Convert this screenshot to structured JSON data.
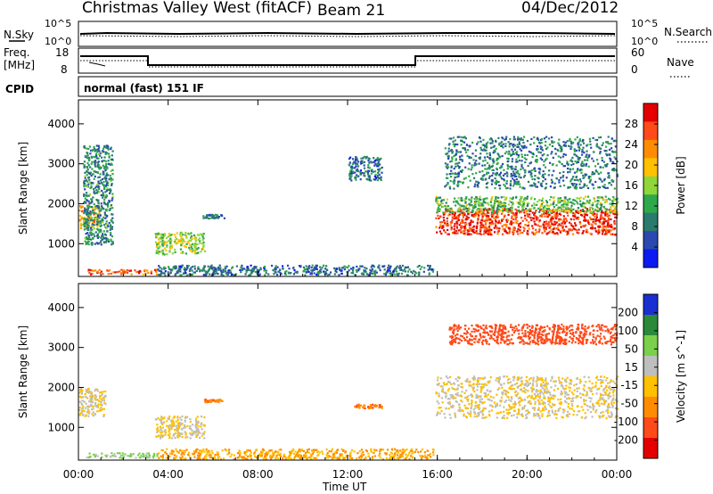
{
  "header": {
    "station": "Christmas Valley West (fitACF)",
    "beam": "Beam 21",
    "date": "04/Dec/2012"
  },
  "top_panels": {
    "nsky_label": "N.Sky",
    "nsky_ticks": [
      "10^5",
      "10^0"
    ],
    "nsearch_label": "N.Search",
    "nsearch_ticks": [
      "10^5",
      "10^0"
    ],
    "freq_label_1": "Freq.",
    "freq_label_2": "[MHz]",
    "freq_ticks": [
      "18",
      "8"
    ],
    "nave_label": "Nave",
    "nave_ticks": [
      "60",
      "0"
    ],
    "cpid_label": "CPID",
    "cpid_value": "normal (fast) 151 IF"
  },
  "chart_data": [
    {
      "type": "heatmap",
      "title": "",
      "ylabel": "Slant Range [km]",
      "xlabel": "",
      "x_ticks": [
        "00:00",
        "04:00",
        "08:00",
        "12:00",
        "16:00",
        "20:00",
        "00:00"
      ],
      "y_ticks": [
        1000,
        2000,
        3000,
        4000
      ],
      "ylim": [
        180,
        4600
      ],
      "xlim_hours": [
        0,
        24
      ],
      "colorbar": {
        "label": "Power [dB]",
        "ticks": [
          "28",
          "24",
          "20",
          "16",
          "12",
          "8",
          "4"
        ],
        "colors": [
          "#e40000",
          "#ff4a1a",
          "#ff8c00",
          "#ffc000",
          "#8fd63a",
          "#2ea84a",
          "#2a7a6e",
          "#2a48b0",
          "#0a1af0"
        ]
      },
      "regions": [
        {
          "t0": 0.0,
          "t1": 0.9,
          "r0": 1400,
          "r1": 2000,
          "v": 20
        },
        {
          "t0": 0.2,
          "t1": 1.5,
          "r0": 1000,
          "r1": 3500,
          "v": 8
        },
        {
          "t0": 3.4,
          "t1": 5.6,
          "r0": 750,
          "r1": 1300,
          "v": 14
        },
        {
          "t0": 5.5,
          "t1": 6.5,
          "r0": 1650,
          "r1": 1750,
          "v": 6
        },
        {
          "t0": 0.3,
          "t1": 3.5,
          "r0": 250,
          "r1": 380,
          "v": 24
        },
        {
          "t0": 3.5,
          "t1": 15.8,
          "r0": 230,
          "r1": 480,
          "v": 6
        },
        {
          "t0": 12.0,
          "t1": 13.5,
          "r0": 2600,
          "r1": 3200,
          "v": 6
        },
        {
          "t0": 15.9,
          "t1": 24.0,
          "r0": 1250,
          "r1": 1900,
          "v": 26
        },
        {
          "t0": 15.9,
          "t1": 24.0,
          "r0": 1800,
          "r1": 2200,
          "v": 12
        },
        {
          "t0": 16.3,
          "t1": 24.0,
          "r0": 2400,
          "r1": 3700,
          "v": 7
        }
      ]
    },
    {
      "type": "heatmap",
      "title": "",
      "ylabel": "Slant Range [km]",
      "xlabel": "Time UT",
      "x_ticks": [
        "00:00",
        "04:00",
        "08:00",
        "12:00",
        "16:00",
        "20:00",
        "00:00"
      ],
      "y_ticks": [
        1000,
        2000,
        3000,
        4000
      ],
      "ylim": [
        180,
        4600
      ],
      "xlim_hours": [
        0,
        24
      ],
      "colorbar": {
        "label": "Velocity [m s^-1]",
        "ticks": [
          "200",
          "100",
          "50",
          "15",
          "-15",
          "-50",
          "-100",
          "-200"
        ],
        "colors": [
          "#1a2fd0",
          "#2a8a3a",
          "#7ad04a",
          "#bebebe",
          "#ffc000",
          "#ff8c00",
          "#ff4a1a",
          "#e40000"
        ]
      },
      "regions": [
        {
          "t0": 0.0,
          "t1": 1.2,
          "r0": 1300,
          "r1": 2000,
          "v": 0
        },
        {
          "t0": 3.4,
          "t1": 5.6,
          "r0": 750,
          "r1": 1300,
          "v": 0
        },
        {
          "t0": 5.6,
          "t1": 6.4,
          "r0": 1650,
          "r1": 1720,
          "v": -60
        },
        {
          "t0": 0.3,
          "t1": 3.5,
          "r0": 250,
          "r1": 380,
          "v": 40
        },
        {
          "t0": 3.5,
          "t1": 15.8,
          "r0": 220,
          "r1": 480,
          "v": -30
        },
        {
          "t0": 12.2,
          "t1": 13.5,
          "r0": 1500,
          "r1": 1600,
          "v": -60
        },
        {
          "t0": 15.9,
          "t1": 24.0,
          "r0": 1250,
          "r1": 2300,
          "v": 0
        },
        {
          "t0": 16.5,
          "t1": 24.0,
          "r0": 3100,
          "r1": 3600,
          "v": -120
        }
      ]
    }
  ],
  "xlabel": "Time UT"
}
